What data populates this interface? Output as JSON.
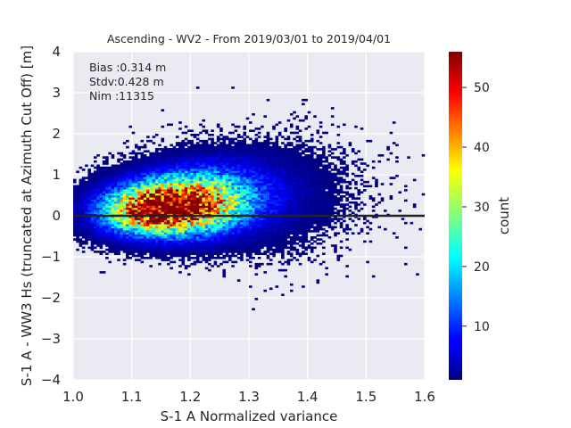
{
  "chart_data": {
    "type": "heatmap",
    "title": "Ascending - WV2 - From 2019/03/01 to 2019/04/01",
    "xlabel": "S-1 A Normalized variance",
    "ylabel": "S-1 A - WW3 Hs (truncated at Azimuth Cut Off) [m]",
    "xlim": [
      1.0,
      1.6
    ],
    "ylim": [
      -4,
      4
    ],
    "x_ticks": [
      "1.0",
      "1.1",
      "1.2",
      "1.3",
      "1.4",
      "1.5",
      "1.6"
    ],
    "y_ticks": [
      "4",
      "3",
      "2",
      "1",
      "0",
      "−1",
      "−2",
      "−3",
      "−4"
    ],
    "grid": true,
    "reference_line_y": 0,
    "stats": [
      "Bias :0.314 m",
      "Stdv:0.428 m",
      "Nim :11315"
    ],
    "colorbar": {
      "label": "count",
      "range": [
        1,
        56
      ],
      "ticks": [
        "50",
        "40",
        "30",
        "20",
        "10"
      ],
      "colormap": "jet"
    },
    "density_clusters": [
      {
        "cx": 1.17,
        "cy": 0.22,
        "sx": 0.06,
        "sy": 0.42,
        "peak": 48
      },
      {
        "cx": 1.11,
        "cy": 0.1,
        "sx": 0.05,
        "sy": 0.35,
        "peak": 22
      },
      {
        "cx": 1.22,
        "cy": 0.45,
        "sx": 0.06,
        "sy": 0.5,
        "peak": 16
      },
      {
        "cx": 1.28,
        "cy": 0.5,
        "sx": 0.06,
        "sy": 0.55,
        "peak": 7
      },
      {
        "cx": 1.35,
        "cy": 0.55,
        "sx": 0.08,
        "sy": 0.75,
        "peak": 2
      }
    ],
    "colors": {
      "background": "#eaeaf2",
      "grid": "#ffffff",
      "reference_line": "#222222"
    }
  }
}
